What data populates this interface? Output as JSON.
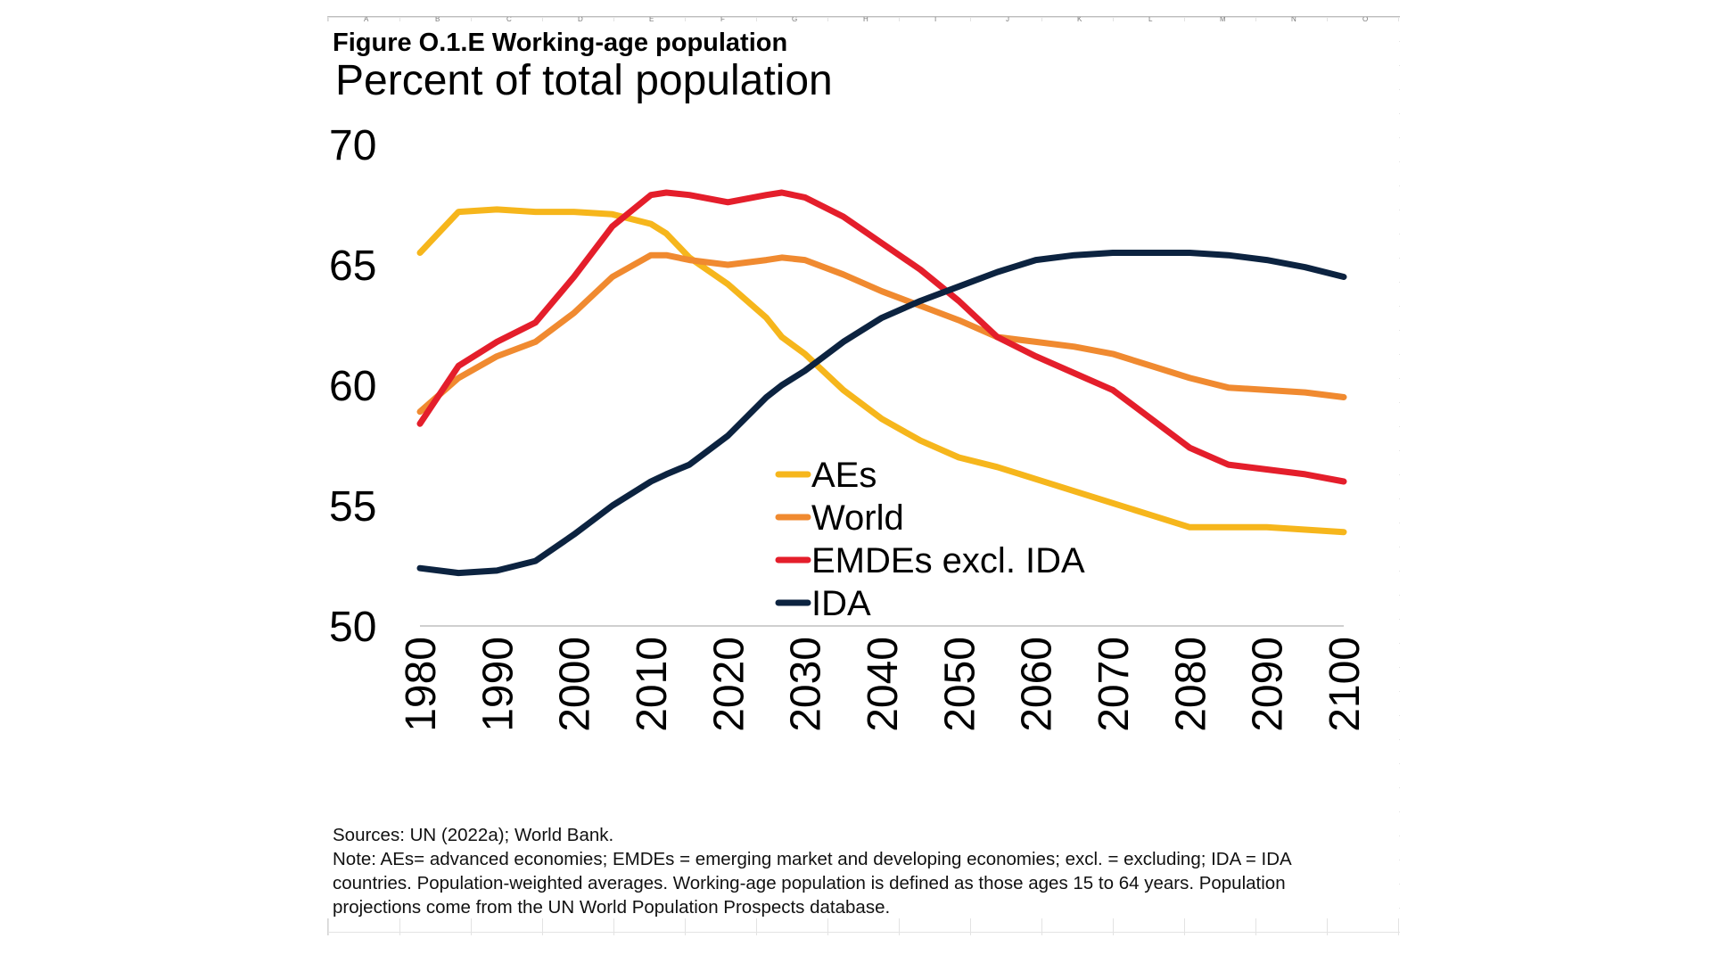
{
  "figure": {
    "title": "Figure O.1.E Working-age population"
  },
  "notes": {
    "sources": "Sources: UN (2022a); World Bank.",
    "note_line1": "Note: AEs= advanced economies; EMDEs = emerging market and developing economies; excl. = excluding; IDA = IDA",
    "note_line2": "countries. Population-weighted averages. Working-age population is defined as those ages 15 to 64 years. Population",
    "note_line3": "projections come from the UN World Population Prospects database."
  },
  "chart_data": {
    "type": "line",
    "title": "Percent of total population",
    "xlabel": "",
    "ylabel": "",
    "xlim": [
      1980,
      2100
    ],
    "ylim": [
      50,
      70
    ],
    "x_ticks": [
      1980,
      1990,
      2000,
      2010,
      2020,
      2030,
      2040,
      2050,
      2060,
      2070,
      2080,
      2090,
      2100
    ],
    "y_ticks": [
      50,
      55,
      60,
      65,
      70
    ],
    "grid": false,
    "legend": "center",
    "x": [
      1980,
      1985,
      1990,
      1995,
      2000,
      2005,
      2010,
      2012,
      2015,
      2020,
      2025,
      2027,
      2030,
      2035,
      2040,
      2045,
      2050,
      2055,
      2060,
      2065,
      2070,
      2075,
      2080,
      2085,
      2090,
      2095,
      2100
    ],
    "series": [
      {
        "name": "AEs",
        "color": "#f6b61c",
        "values": [
          65.5,
          67.2,
          67.3,
          67.2,
          67.2,
          67.1,
          66.7,
          66.3,
          65.3,
          64.2,
          62.8,
          62.0,
          61.3,
          59.8,
          58.6,
          57.7,
          57.0,
          56.6,
          56.1,
          55.6,
          55.1,
          54.6,
          54.1,
          54.1,
          54.1,
          54.0,
          53.9
        ]
      },
      {
        "name": "World",
        "color": "#f08a30",
        "values": [
          58.9,
          60.3,
          61.2,
          61.8,
          63.0,
          64.5,
          65.4,
          65.4,
          65.2,
          65.0,
          65.2,
          65.3,
          65.2,
          64.6,
          63.9,
          63.3,
          62.7,
          62.0,
          61.8,
          61.6,
          61.3,
          60.8,
          60.3,
          59.9,
          59.8,
          59.7,
          59.5
        ]
      },
      {
        "name": "EMDEs excl. IDA",
        "color": "#e41e2b",
        "values": [
          58.4,
          60.8,
          61.8,
          62.6,
          64.5,
          66.6,
          67.9,
          68.0,
          67.9,
          67.6,
          67.9,
          68.0,
          67.8,
          67.0,
          65.9,
          64.8,
          63.5,
          62.0,
          61.2,
          60.5,
          59.8,
          58.6,
          57.4,
          56.7,
          56.5,
          56.3,
          56.0
        ]
      },
      {
        "name": "IDA",
        "color": "#0c2340",
        "values": [
          52.4,
          52.2,
          52.3,
          52.7,
          53.8,
          55.0,
          56.0,
          56.3,
          56.7,
          57.9,
          59.5,
          60.0,
          60.6,
          61.8,
          62.8,
          63.5,
          64.1,
          64.7,
          65.2,
          65.4,
          65.5,
          65.5,
          65.5,
          65.4,
          65.2,
          64.9,
          64.5
        ]
      }
    ]
  }
}
